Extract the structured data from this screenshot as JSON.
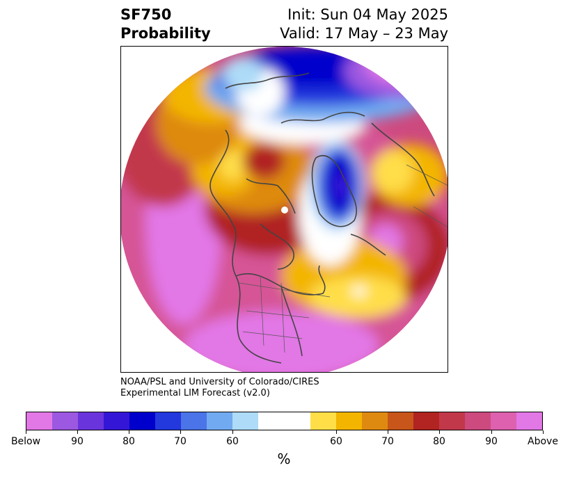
{
  "title": {
    "variable": "SF750",
    "subtitle": "Probability",
    "init": "Init: Sun 04 May 2025",
    "valid": "Valid: 17 May – 23 May"
  },
  "credit": {
    "line1": "NOAA/PSL and University of Colorado/CIRES",
    "line2": "Experimental LIM Forecast (v2.0)"
  },
  "colorbar": {
    "unit": "%",
    "colors": [
      "#e277e6",
      "#9c58e0",
      "#6a34dc",
      "#3417d6",
      "#0000cc",
      "#2338dd",
      "#4b74e8",
      "#71aaf0",
      "#addbf8",
      "#ffffff",
      "#ffffff",
      "#ffde48",
      "#f3b500",
      "#de8a10",
      "#c8561a",
      "#b12421",
      "#c2384b",
      "#cd4a7f",
      "#dd61ae",
      "#e277e6"
    ],
    "labels": [
      "Below",
      "90",
      "80",
      "70",
      "60",
      "60",
      "70",
      "80",
      "90",
      "Above"
    ]
  }
}
